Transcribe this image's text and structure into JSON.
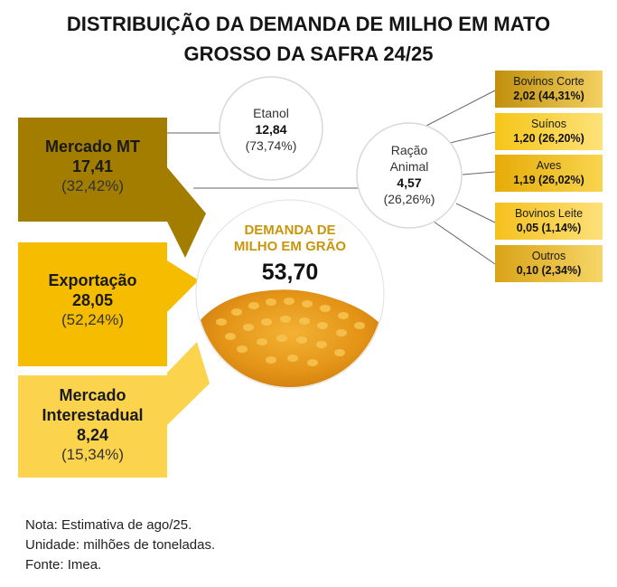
{
  "title": {
    "line1": "DISTRIBUIÇÃO DA DEMANDA DE MILHO EM MATO",
    "line2": "GROSSO DA SAFRA 24/25"
  },
  "center": {
    "title_line1": "DEMANDA DE",
    "title_line2": "MILHO EM GRÃO",
    "value": "53,70"
  },
  "left_blocks": [
    {
      "label": "Mercado MT",
      "value": "17,41",
      "percent": "(32,42%)"
    },
    {
      "label": "Exportação",
      "value": "28,05",
      "percent": "(52,24%)"
    },
    {
      "label_line1": "Mercado",
      "label_line2": "Interestadual",
      "value": "8,24",
      "percent": "(15,34%)"
    }
  ],
  "etanol": {
    "label": "Etanol",
    "value": "12,84",
    "percent": "(73,74%)"
  },
  "racao": {
    "label_line1": "Ração",
    "label_line2": "Animal",
    "value": "4,57",
    "percent": "(26,26%)"
  },
  "racao_items": [
    {
      "label": "Bovinos Corte",
      "value": "2,02 (44,31%)"
    },
    {
      "label": "Suínos",
      "value": "1,20 (26,20%)"
    },
    {
      "label": "Aves",
      "value": "1,19 (26,02%)"
    },
    {
      "label": "Bovinos Leite",
      "value": "0,05 (1,14%)"
    },
    {
      "label": "Outros",
      "value": "0,10 (2,34%)"
    }
  ],
  "notes": [
    "Nota: Estimativa de ago/25.",
    "Unidade: milhões de toneladas.",
    "Fonte: Imea."
  ],
  "colors": {
    "mercado_mt": "#a37d00",
    "exportacao": "#f5bc00",
    "interestadual": "#fcd34d",
    "center_title": "#c9950a"
  }
}
